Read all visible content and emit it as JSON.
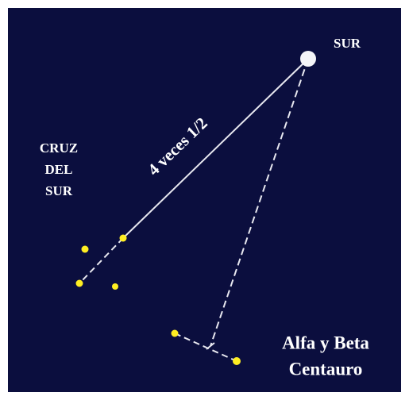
{
  "labels": {
    "pole": "SUR",
    "cross": [
      "CRUZ",
      "DEL",
      "SUR"
    ],
    "distance": "4 veces 1/2",
    "pointers": [
      "Alfa y Beta",
      "Centauro"
    ]
  }
}
